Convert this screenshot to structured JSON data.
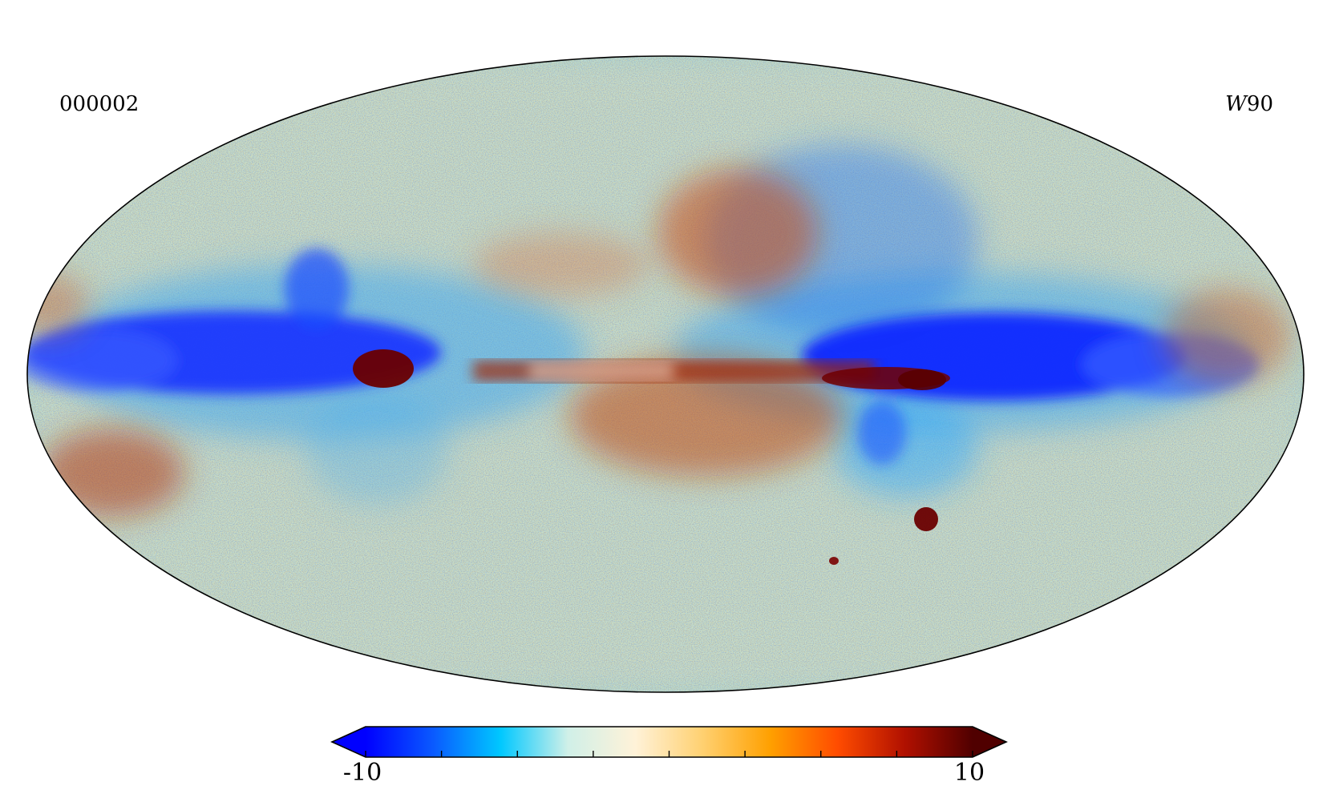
{
  "map": {
    "projection": "mollweide",
    "map_id": "000002",
    "band_italic": "W",
    "band_number": "90"
  },
  "colorbar": {
    "min_label": "-10",
    "max_label": "10",
    "min": -10,
    "max": 10,
    "extend": "both",
    "n_ticks": 9,
    "colormap_stops": [
      "#0000ff",
      "#0a5aff",
      "#00c8ff",
      "#d0f0e8",
      "#fff2d8",
      "#ffd070",
      "#ffa000",
      "#ff4c00",
      "#b01000",
      "#500000"
    ]
  }
}
